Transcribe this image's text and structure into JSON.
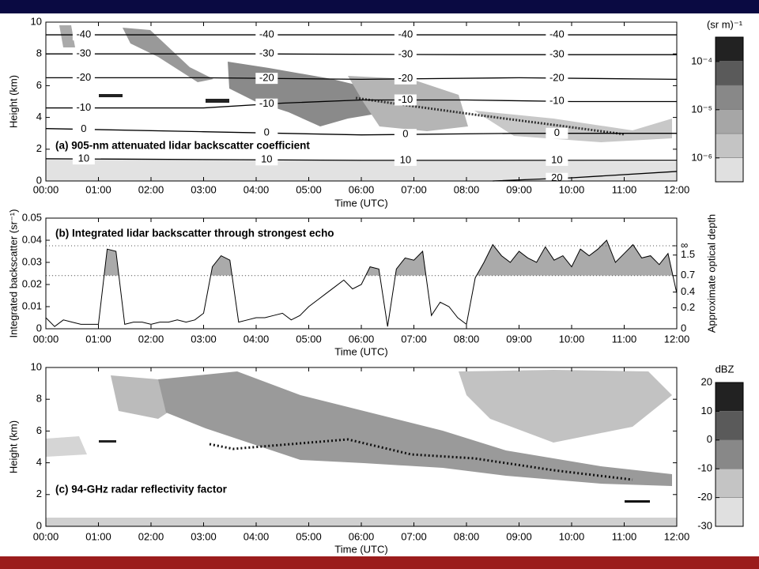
{
  "chart_data": [
    {
      "type": "contour",
      "title": "(a) 905-nm attenuated lidar backscatter coefficient",
      "xlabel": "Time (UTC)",
      "ylabel": "Height (km)",
      "xlim": [
        "00:00",
        "12:00"
      ],
      "xticks": [
        "00:00",
        "01:00",
        "02:00",
        "03:00",
        "04:00",
        "05:00",
        "06:00",
        "07:00",
        "08:00",
        "09:00",
        "10:00",
        "11:00",
        "12:00"
      ],
      "ylim": [
        0,
        10
      ],
      "yticks": [
        0,
        2,
        4,
        6,
        8,
        10
      ],
      "series": [
        {
          "name": "-40",
          "color": "#000000",
          "x": [
            "00:00",
            "04:00",
            "08:00",
            "12:00"
          ],
          "values": [
            9.2,
            9.2,
            9.2,
            9.2
          ]
        },
        {
          "name": "-30",
          "color": "#000000",
          "x": [
            "00:00",
            "04:00",
            "08:00",
            "12:00"
          ],
          "values": [
            8.0,
            8.0,
            7.95,
            7.95
          ]
        },
        {
          "name": "-20",
          "color": "#000000",
          "x": [
            "00:00",
            "03:00",
            "06:00",
            "09:00",
            "12:00"
          ],
          "values": [
            6.5,
            6.5,
            6.4,
            6.5,
            6.4
          ]
        },
        {
          "name": "-10",
          "color": "#000000",
          "x": [
            "00:00",
            "03:00",
            "04:30",
            "06:00",
            "08:00",
            "10:00",
            "12:00"
          ],
          "values": [
            4.6,
            4.6,
            4.9,
            5.1,
            5.1,
            5.0,
            5.0
          ]
        },
        {
          "name": "0",
          "color": "#000000",
          "x": [
            "00:00",
            "03:00",
            "06:00",
            "09:00",
            "12:00"
          ],
          "values": [
            3.3,
            3.1,
            2.9,
            3.0,
            3.0
          ]
        },
        {
          "name": "10",
          "color": "#000000",
          "x": [
            "00:00",
            "06:00",
            "12:00"
          ],
          "values": [
            1.4,
            1.3,
            1.3
          ]
        },
        {
          "name": "20",
          "color": "#000000",
          "x": [
            "08:30",
            "10:00",
            "12:00"
          ],
          "values": [
            0,
            0.2,
            0.6
          ]
        }
      ],
      "colorbar": {
        "title": "(sr m)⁻¹",
        "log": true,
        "lim": [
          3.2e-07,
          0.00032
        ],
        "ticks": [
          {
            "value": 1e-06,
            "label": "10⁻⁶"
          },
          {
            "value": 1e-05,
            "label": "10⁻⁵"
          },
          {
            "value": 0.0001,
            "label": "10⁻⁴"
          }
        ]
      }
    },
    {
      "type": "line",
      "title": "(b) Integrated lidar backscatter through strongest echo",
      "xlabel": "Time (UTC)",
      "ylabel": "Integrated backscatter (sr⁻¹)",
      "y2label": "Approximate optical depth",
      "xlim": [
        "00:00",
        "12:00"
      ],
      "xticks": [
        "00:00",
        "01:00",
        "02:00",
        "03:00",
        "04:00",
        "05:00",
        "06:00",
        "07:00",
        "08:00",
        "09:00",
        "10:00",
        "11:00",
        "12:00"
      ],
      "ylim": [
        0,
        0.05
      ],
      "yticks": [
        0,
        0.01,
        0.02,
        0.03,
        0.04,
        0.05
      ],
      "y2ticks": [
        0,
        0.2,
        0.4,
        0.7,
        1.5,
        {
          "value": null,
          "label": "∞"
        }
      ],
      "shade_above": 0.7,
      "fill_color": "#aaaaaa",
      "series": [
        {
          "color": "#000000",
          "x": [
            "00:00",
            "00:10",
            "00:20",
            "00:30",
            "00:40",
            "00:50",
            "01:00",
            "01:10",
            "01:20",
            "01:30",
            "01:40",
            "01:50",
            "02:00",
            "02:10",
            "02:20",
            "02:30",
            "02:40",
            "02:50",
            "03:00",
            "03:10",
            "03:20",
            "03:30",
            "03:40",
            "03:50",
            "04:00",
            "04:10",
            "04:20",
            "04:30",
            "04:40",
            "04:50",
            "05:00",
            "05:10",
            "05:20",
            "05:30",
            "05:40",
            "05:50",
            "06:00",
            "06:10",
            "06:20",
            "06:30",
            "06:40",
            "06:50",
            "07:00",
            "07:10",
            "07:20",
            "07:30",
            "07:40",
            "07:50",
            "08:00",
            "08:10",
            "08:20",
            "08:30",
            "08:40",
            "08:50",
            "09:00",
            "09:10",
            "09:20",
            "09:30",
            "09:40",
            "09:50",
            "10:00",
            "10:10",
            "10:20",
            "10:30",
            "10:40",
            "10:50",
            "11:00",
            "11:10",
            "11:20",
            "11:30",
            "11:40",
            "11:50",
            "12:00"
          ],
          "values": [
            0.005,
            0.001,
            0.004,
            0.003,
            0.002,
            0.002,
            0.002,
            0.036,
            0.035,
            0.002,
            0.003,
            0.003,
            0.002,
            0.003,
            0.003,
            0.004,
            0.003,
            0.004,
            0.007,
            0.028,
            0.033,
            0.031,
            0.003,
            0.004,
            0.005,
            0.005,
            0.006,
            0.007,
            0.004,
            0.006,
            0.01,
            0.013,
            0.016,
            0.019,
            0.022,
            0.018,
            0.02,
            0.028,
            0.027,
            0.001,
            0.027,
            0.032,
            0.031,
            0.035,
            0.006,
            0.012,
            0.01,
            0.005,
            0.002,
            0.023,
            0.03,
            0.038,
            0.033,
            0.03,
            0.035,
            0.032,
            0.03,
            0.037,
            0.031,
            0.033,
            0.028,
            0.036,
            0.033,
            0.036,
            0.04,
            0.03,
            0.034,
            0.038,
            0.032,
            0.033,
            0.029,
            0.034,
            0.016
          ]
        }
      ]
    },
    {
      "type": "heatmap",
      "title": "(c) 94-GHz radar reflectivity factor",
      "xlabel": "Time (UTC)",
      "ylabel": "Height (km)",
      "xlim": [
        "00:00",
        "12:00"
      ],
      "xticks": [
        "00:00",
        "01:00",
        "02:00",
        "03:00",
        "04:00",
        "05:00",
        "06:00",
        "07:00",
        "08:00",
        "09:00",
        "10:00",
        "11:00",
        "12:00"
      ],
      "ylim": [
        0,
        10
      ],
      "yticks": [
        0,
        2,
        4,
        6,
        8,
        10
      ],
      "colorbar": {
        "title": "dBZ",
        "log": false,
        "lim": [
          -30,
          20
        ],
        "ticks": [
          -30,
          -20,
          -10,
          0,
          10,
          20
        ]
      }
    }
  ]
}
